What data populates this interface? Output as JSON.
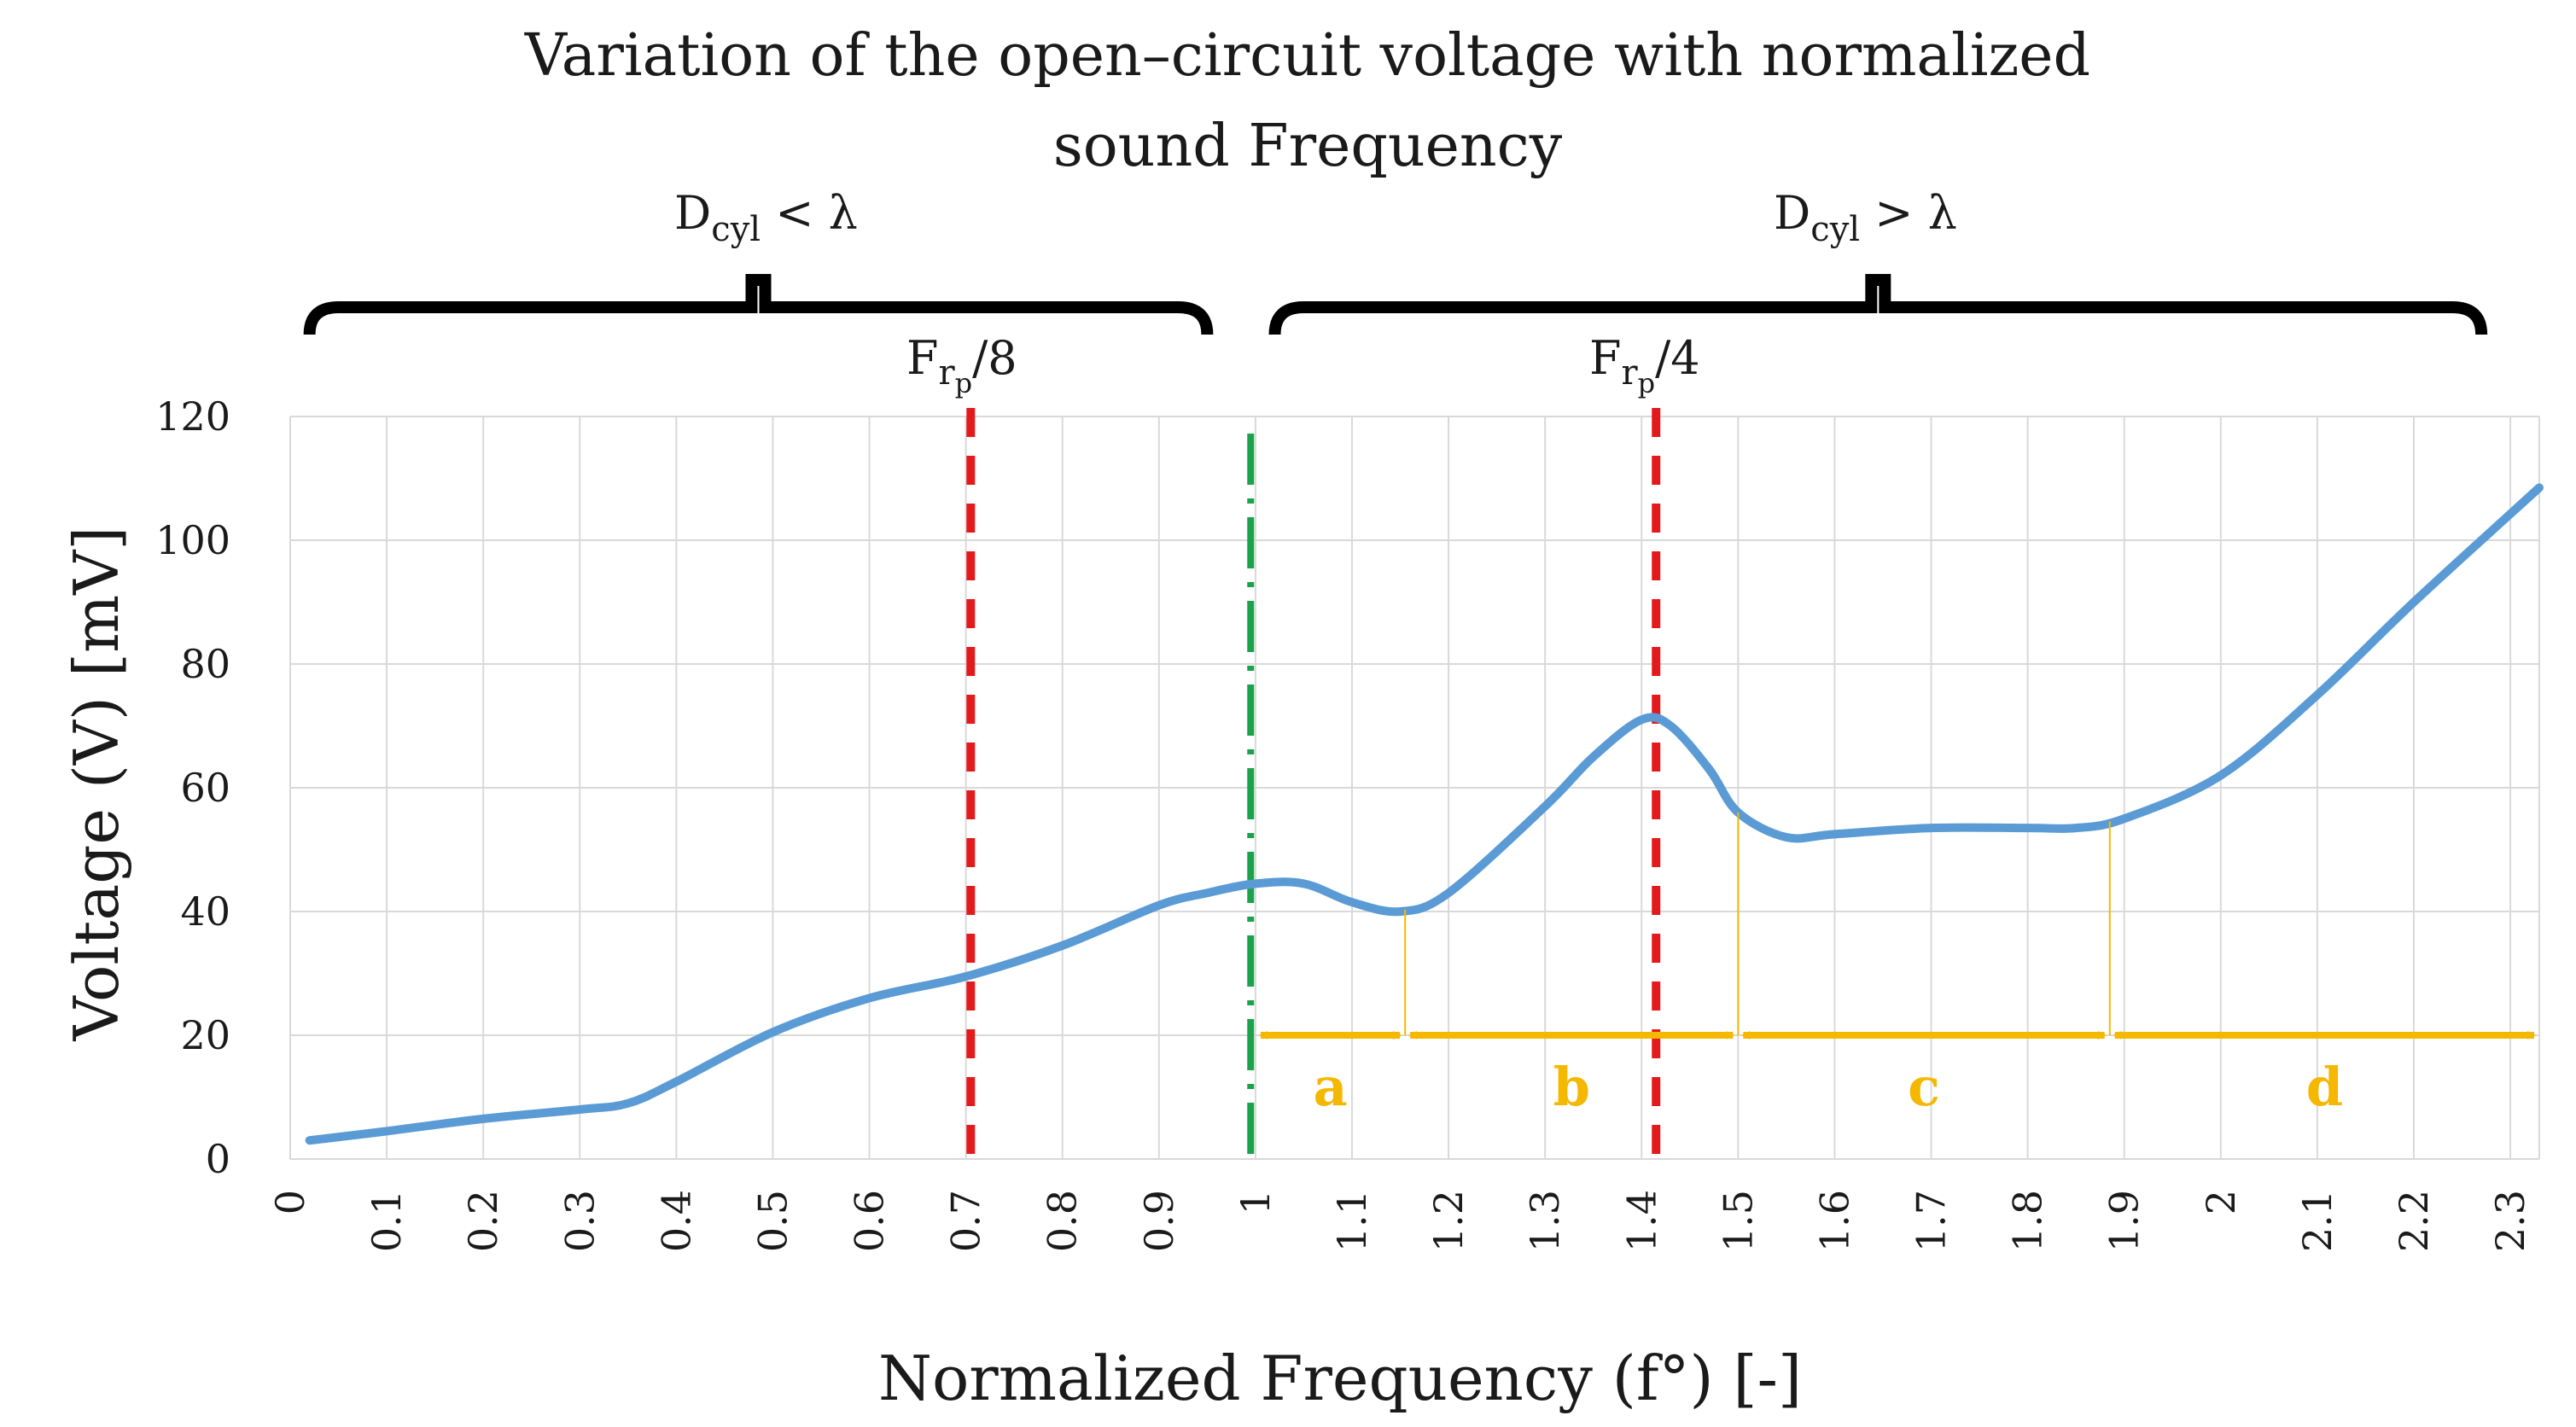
{
  "chart_data": {
    "type": "line",
    "title_lines": [
      "Variation of the open–circuit voltage with normalized",
      "sound Frequency"
    ],
    "xlabel": "Normalized Frequency  (f°)  [-]",
    "ylabel": "Voltage (V)  [mV]",
    "xlim": [
      0,
      2.33
    ],
    "ylim": [
      0,
      120
    ],
    "x_ticks": [
      "0",
      "0.1",
      "0.2",
      "0.3",
      "0.4",
      "0.5",
      "0.6",
      "0.7",
      "0.8",
      "0.9",
      "1",
      "1.1",
      "1.2",
      "1.3",
      "1.4",
      "1.5",
      "1.6",
      "1.7",
      "1.8",
      "1.9",
      "2",
      "2.1",
      "2.2",
      "2.3"
    ],
    "y_ticks": [
      "0",
      "20",
      "40",
      "60",
      "80",
      "100",
      "120"
    ],
    "grid": true,
    "series": [
      {
        "name": "Open-circuit voltage",
        "color": "#5b9bd5",
        "x": [
          0.02,
          0.1,
          0.2,
          0.3,
          0.35,
          0.4,
          0.5,
          0.6,
          0.7,
          0.8,
          0.9,
          0.95,
          1.0,
          1.05,
          1.1,
          1.15,
          1.2,
          1.3,
          1.35,
          1.4,
          1.43,
          1.47,
          1.5,
          1.55,
          1.6,
          1.7,
          1.8,
          1.85,
          1.9,
          2.0,
          2.1,
          2.2,
          2.33
        ],
        "y": [
          3,
          4.5,
          6.5,
          8,
          9,
          12.5,
          20.5,
          26,
          29.5,
          34.5,
          41,
          43,
          44.5,
          44.5,
          41.5,
          40,
          43,
          57,
          65,
          71,
          70,
          63,
          56,
          52,
          52.5,
          53.5,
          53.5,
          53.5,
          55,
          62,
          75,
          90,
          108.5
        ]
      }
    ],
    "annotations": {
      "d_cyl_less": "D",
      "d_cyl_less_sub": "cyl",
      "d_cyl_less_rel": " < λ",
      "d_cyl_greater": "D",
      "d_cyl_greater_sub": "cyl",
      "d_cyl_greater_rel": " > λ",
      "frp8_main": "F",
      "frp8_sub": "r",
      "frp8_subsub": "p",
      "frp8_tail": "/8",
      "frp4_main": "F",
      "frp4_sub": "r",
      "frp4_subsub": "p",
      "frp4_tail": "/4"
    },
    "reference_lines": [
      {
        "name": "Frp/8",
        "x": 0.705,
        "color": "#e31a1c",
        "style": "dashed"
      },
      {
        "name": "Frp/4",
        "x": 1.415,
        "color": "#e31a1c",
        "style": "dashed"
      },
      {
        "name": "boundary",
        "x": 0.995,
        "color": "#1aa34a",
        "style": "dashdot"
      }
    ],
    "regions": [
      {
        "label": "a",
        "x_start": 1.0,
        "x_end": 1.155
      },
      {
        "label": "b",
        "x_start": 1.155,
        "x_end": 1.5
      },
      {
        "label": "c",
        "x_start": 1.5,
        "x_end": 1.885
      },
      {
        "label": "d",
        "x_start": 1.885,
        "x_end": 2.33
      }
    ],
    "region_arrow_y": 20,
    "region_color": "#f5b800",
    "bracket_ranges": [
      {
        "name": "D<lambda",
        "x_start": 0.02,
        "x_end": 0.95
      },
      {
        "name": "D>lambda",
        "x_start": 1.02,
        "x_end": 2.27
      }
    ]
  }
}
